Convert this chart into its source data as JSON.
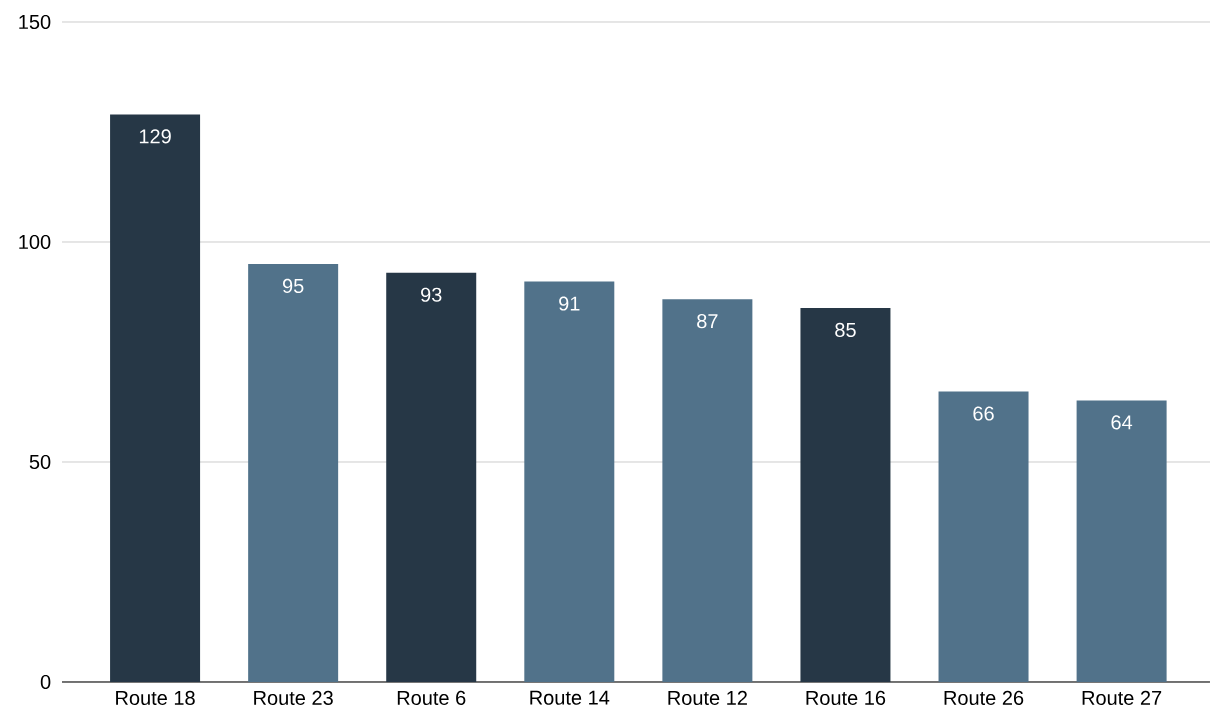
{
  "chart_data": {
    "type": "bar",
    "categories": [
      "Route 18",
      "Route 23",
      "Route 6",
      "Route 14",
      "Route 12",
      "Route 16",
      "Route 26",
      "Route 27"
    ],
    "values": [
      129,
      95,
      93,
      91,
      87,
      85,
      66,
      64
    ],
    "colors": [
      "#263746",
      "#51728a",
      "#263746",
      "#51728a",
      "#51728a",
      "#263746",
      "#51728a",
      "#51728a"
    ],
    "ylim": [
      0,
      150
    ],
    "yticks": [
      0,
      50,
      100,
      150
    ],
    "grid": "y",
    "data_labels": true
  }
}
